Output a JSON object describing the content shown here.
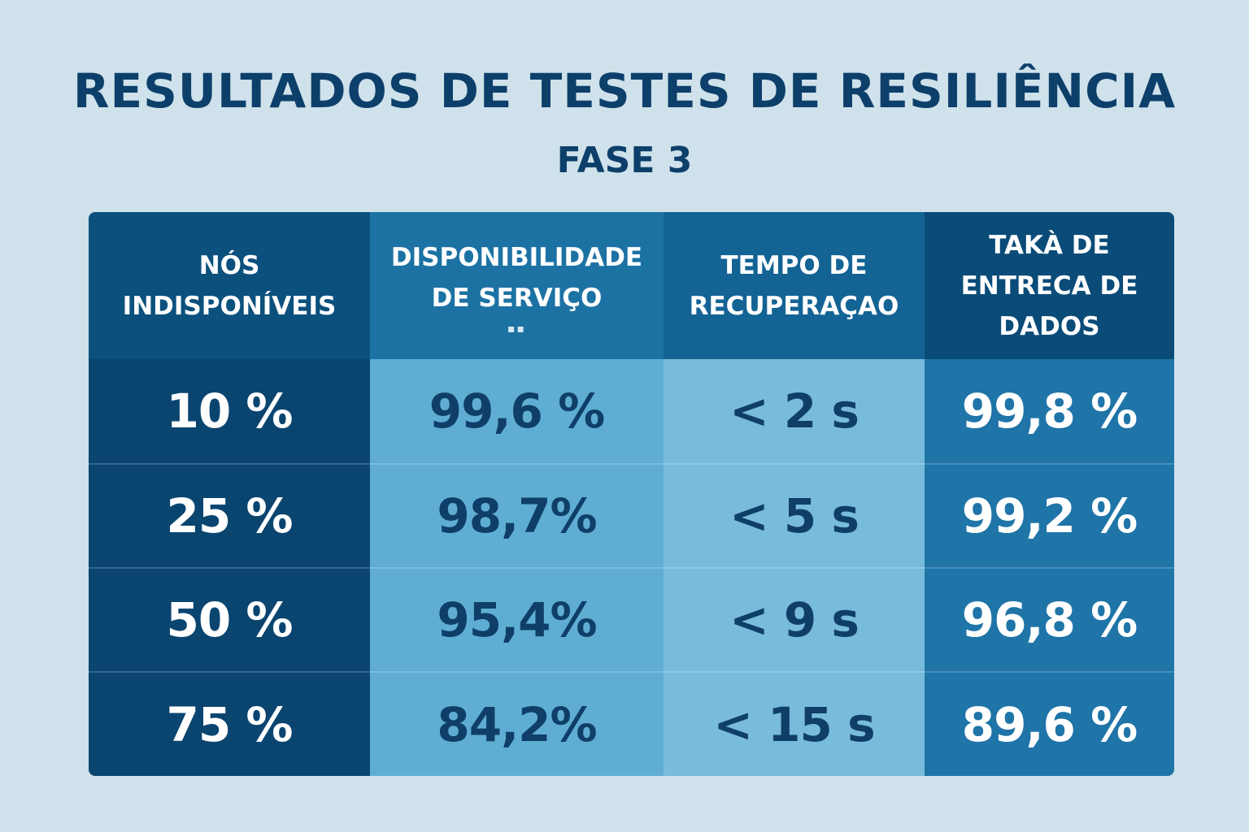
{
  "title": "RESULTADOS DE TESTES DE RESILIÊNCIA",
  "subtitle": "FASE 3",
  "chart_data": {
    "type": "table",
    "title": "RESULTADOS DE TESTES DE RESILIÊNCIA",
    "subtitle": "FASE 3",
    "columns": [
      "NÓS\nINDISPONÍVEIS",
      "DISPONIBILIDADE\nDE SERVIÇO",
      "TEMPO DE\nRECUPERAÇAO",
      "TAKÀ DE\nENTRECA DE\nDADOS"
    ],
    "column_note": "▪▪",
    "rows": [
      [
        "10 %",
        "99,6 %",
        "< 2 s",
        "99,8 %"
      ],
      [
        "25 %",
        "98,7%",
        "< 5 s",
        "99,2 %"
      ],
      [
        "50 %",
        "95,4%",
        "< 9 s",
        "96,8 %"
      ],
      [
        "75 %",
        "84,2%",
        "< 15 s",
        "89,6 %"
      ]
    ],
    "colors": {
      "background": "#cfe1ea",
      "title": "#0d3f6b",
      "col_node": "#0a4570",
      "col_availability": "#5fadd2",
      "col_recovery": "#79bbdb",
      "col_delivery": "#1f74a8"
    }
  }
}
